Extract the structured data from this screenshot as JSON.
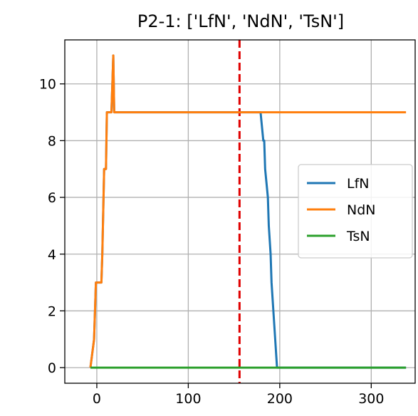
{
  "chart_data": {
    "type": "line",
    "title": "P2-1: ['LfN', 'NdN', 'TsN']",
    "xlabel": "",
    "ylabel": "",
    "xlim": [
      -35,
      348
    ],
    "ylim": [
      -0.55,
      11.55
    ],
    "xticks": [
      0,
      100,
      200,
      300
    ],
    "yticks": [
      0,
      2,
      4,
      6,
      8,
      10
    ],
    "grid": true,
    "legend_position": "center-right",
    "vline": {
      "x": 156,
      "color": "#e00000",
      "style": "dashed"
    },
    "series": [
      {
        "name": "LfN",
        "color": "#1f77b4",
        "points": [
          [
            -7,
            0
          ],
          [
            -3,
            1
          ],
          [
            -2,
            2
          ],
          [
            -1,
            3
          ],
          [
            5,
            3
          ],
          [
            6,
            4
          ],
          [
            8,
            7
          ],
          [
            10,
            7
          ],
          [
            11,
            9
          ],
          [
            16,
            9
          ],
          [
            17,
            10
          ],
          [
            18,
            11
          ],
          [
            19,
            9
          ],
          [
            179,
            9
          ],
          [
            182,
            8
          ],
          [
            183,
            8
          ],
          [
            184,
            7
          ],
          [
            187,
            6
          ],
          [
            188,
            5
          ],
          [
            190,
            4
          ],
          [
            191,
            3
          ],
          [
            193,
            2
          ],
          [
            195,
            1
          ],
          [
            197,
            0
          ],
          [
            338,
            0
          ]
        ]
      },
      {
        "name": "NdN",
        "color": "#ff7f0e",
        "points": [
          [
            -7,
            0
          ],
          [
            -3,
            1
          ],
          [
            -2,
            2
          ],
          [
            -1,
            3
          ],
          [
            5,
            3
          ],
          [
            6,
            4
          ],
          [
            8,
            7
          ],
          [
            10,
            7
          ],
          [
            11,
            9
          ],
          [
            16,
            9
          ],
          [
            17,
            10
          ],
          [
            18,
            11
          ],
          [
            19,
            9
          ],
          [
            338,
            9
          ]
        ]
      },
      {
        "name": "TsN",
        "color": "#2ca02c",
        "points": [
          [
            -7,
            0
          ],
          [
            338,
            0
          ]
        ]
      }
    ]
  }
}
